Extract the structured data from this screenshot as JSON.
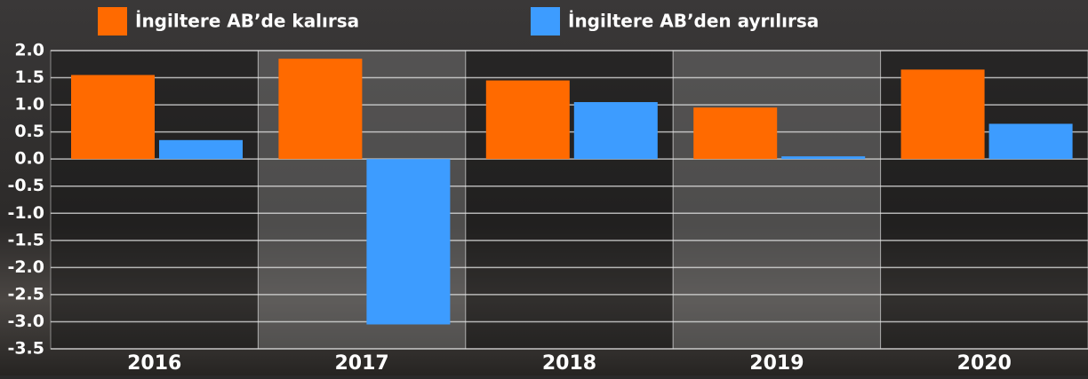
{
  "chart_data": {
    "type": "bar",
    "categories": [
      "2016",
      "2017",
      "2018",
      "2019",
      "2020"
    ],
    "series": [
      {
        "name": "İngiltere AB’de kalırsa",
        "color": "#ff6a00",
        "values": [
          1.55,
          1.85,
          1.45,
          0.95,
          1.65
        ]
      },
      {
        "name": "İngiltere AB’den ayrılırsa",
        "color": "#3d9cff",
        "values": [
          0.35,
          -3.05,
          1.05,
          0.05,
          0.65
        ]
      }
    ],
    "ylim": [
      -3.5,
      2.0
    ],
    "yticks": [
      {
        "value": 2.0,
        "label": "2.0"
      },
      1.5,
      {
        "value": 1.0,
        "label": "1.0"
      },
      0.5,
      {
        "value": 0.0,
        "label": "0.0"
      },
      -0.5,
      {
        "value": -1.0,
        "label": "-1.0"
      },
      -1.5,
      {
        "value": -2.0,
        "label": "-2.0"
      },
      -2.5,
      {
        "value": -3.0,
        "label": "-3.0"
      },
      {
        "value": -3.5,
        "label": "-3.5"
      }
    ],
    "grid": true,
    "legend": "top"
  }
}
